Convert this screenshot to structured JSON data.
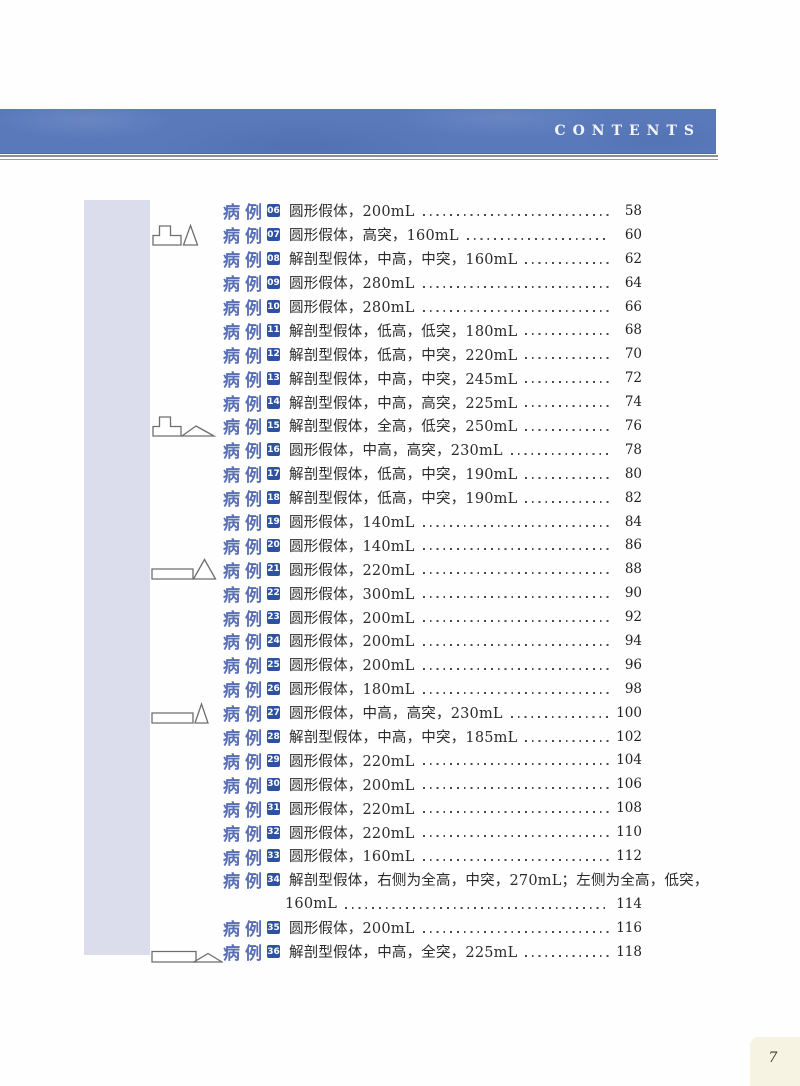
{
  "header": {
    "title": "CONTENTS"
  },
  "colors": {
    "band_blue": "#5979bb",
    "accent_blue": "#5a6fb2",
    "badge_blue": "#2e51a2",
    "side_band_lavender": "#dbdcec",
    "page_tab_cream": "#f6f3e2"
  },
  "toc": {
    "case_label": "病例",
    "entries": [
      {
        "num": "06",
        "desc": "圆形假体，200mL",
        "page": "58"
      },
      {
        "num": "07",
        "desc": "圆形假体，高突，160mL",
        "page": "60",
        "icon": "step-tall"
      },
      {
        "num": "08",
        "desc": "解剖型假体，中高，中突，160mL",
        "page": "62"
      },
      {
        "num": "09",
        "desc": "圆形假体，280mL",
        "page": "64"
      },
      {
        "num": "10",
        "desc": "圆形假体，280mL",
        "page": "66"
      },
      {
        "num": "11",
        "desc": "解剖型假体，低高，低突，180mL",
        "page": "68"
      },
      {
        "num": "12",
        "desc": "解剖型假体，低高，中突，220mL",
        "page": "70"
      },
      {
        "num": "13",
        "desc": "解剖型假体，中高，中突，245mL",
        "page": "72"
      },
      {
        "num": "14",
        "desc": "解剖型假体，中高，高突，225mL",
        "page": "74"
      },
      {
        "num": "15",
        "desc": "解剖型假体，全高，低突，250mL",
        "page": "76",
        "icon": "step-flat"
      },
      {
        "num": "16",
        "desc": "圆形假体，中高，高突，230mL",
        "page": "78"
      },
      {
        "num": "17",
        "desc": "解剖型假体，低高，中突，190mL",
        "page": "80"
      },
      {
        "num": "18",
        "desc": "解剖型假体，低高，中突，190mL",
        "page": "82"
      },
      {
        "num": "19",
        "desc": "圆形假体，140mL",
        "page": "84"
      },
      {
        "num": "20",
        "desc": "圆形假体，140mL",
        "page": "86"
      },
      {
        "num": "21",
        "desc": "圆形假体，220mL",
        "page": "88",
        "icon": "rect-mid"
      },
      {
        "num": "22",
        "desc": "圆形假体，300mL",
        "page": "90"
      },
      {
        "num": "23",
        "desc": "圆形假体，200mL",
        "page": "92"
      },
      {
        "num": "24",
        "desc": "圆形假体，200mL",
        "page": "94"
      },
      {
        "num": "25",
        "desc": "圆形假体，200mL",
        "page": "96"
      },
      {
        "num": "26",
        "desc": "圆形假体，180mL",
        "page": "98"
      },
      {
        "num": "27",
        "desc": "圆形假体，中高，高突，230mL",
        "page": "100",
        "icon": "rect-tall"
      },
      {
        "num": "28",
        "desc": "解剖型假体，中高，中突，185mL",
        "page": "102"
      },
      {
        "num": "29",
        "desc": "圆形假体，220mL",
        "page": "104"
      },
      {
        "num": "30",
        "desc": "圆形假体，200mL",
        "page": "106"
      },
      {
        "num": "31",
        "desc": "圆形假体，220mL",
        "page": "108"
      },
      {
        "num": "32",
        "desc": "圆形假体，220mL",
        "page": "110"
      },
      {
        "num": "33",
        "desc": "圆形假体，160mL",
        "page": "112"
      },
      {
        "num": "34",
        "desc": "解剖型假体，右侧为全高，中突，270mL；左侧为全高，低突，",
        "desc2": "160mL",
        "page": "114"
      },
      {
        "num": "35",
        "desc": "圆形假体，200mL",
        "page": "116"
      },
      {
        "num": "36",
        "desc": "解剖型假体，中高，全突，225mL",
        "page": "118",
        "icon": "rect-flat"
      }
    ]
  },
  "footer": {
    "page_number": "7"
  }
}
